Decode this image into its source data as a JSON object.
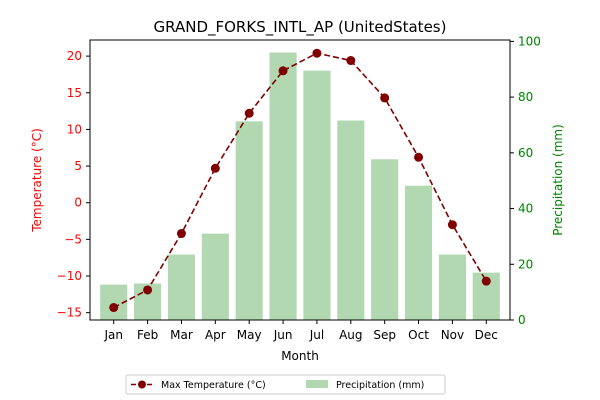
{
  "chart_data": {
    "type": "bar+line",
    "title": "GRAND_FORKS_INTL_AP (UnitedStates)",
    "xlabel": "Month",
    "ylabel_left": "Temperature (°C)",
    "ylabel_right": "Precipitation (mm)",
    "categories": [
      "Jan",
      "Feb",
      "Mar",
      "Apr",
      "May",
      "Jun",
      "Jul",
      "Aug",
      "Sep",
      "Oct",
      "Nov",
      "Dec"
    ],
    "ylim_left": [
      -16.0,
      22.2
    ],
    "ylim_right": [
      0,
      100.5
    ],
    "yticks_left": [
      -15,
      -10,
      -5,
      0,
      5,
      10,
      15,
      20
    ],
    "yticks_right": [
      0,
      20,
      40,
      60,
      80,
      100
    ],
    "series": [
      {
        "name": "Max Temperature (°C)",
        "kind": "line",
        "axis": "left",
        "style": "dashed",
        "marker": "circle",
        "color": "#800000",
        "values": [
          -14.3,
          -11.9,
          -4.2,
          4.7,
          12.2,
          18.0,
          20.4,
          19.4,
          14.3,
          6.2,
          -3.0,
          -10.7
        ]
      },
      {
        "name": "Precipitation (mm)",
        "kind": "bar",
        "axis": "right",
        "color": "#b1d8b1",
        "values": [
          12.7,
          13.1,
          23.5,
          31.0,
          71.3,
          96.0,
          89.5,
          71.6,
          57.7,
          48.2,
          23.5,
          17.0
        ]
      }
    ],
    "left_axis_color": "#ff0000",
    "right_axis_color": "#008000",
    "legend_position": "bottom-center"
  }
}
